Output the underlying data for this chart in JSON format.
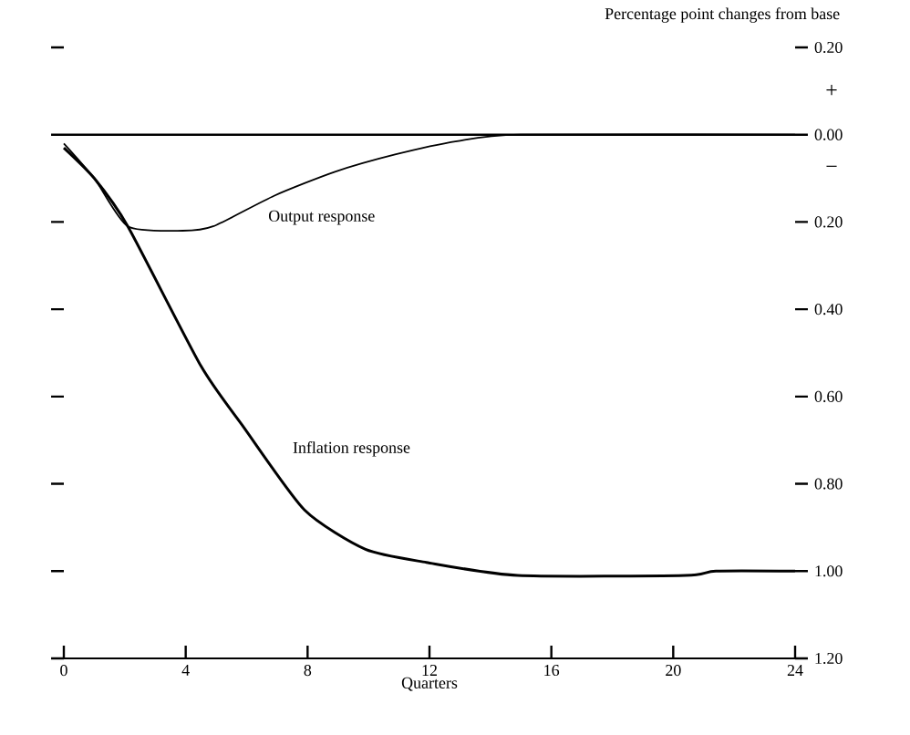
{
  "chart_data": {
    "type": "line",
    "ylabel": "Percentage point changes from base",
    "xlabel": "Quarters",
    "x": [
      0,
      1,
      2.1,
      3.9,
      4.9,
      6.9,
      8.9,
      10.9,
      12.9,
      15,
      24
    ],
    "series": [
      {
        "name": "Output response",
        "color": "#000000",
        "values": [
          -0.02,
          -0.1,
          -0.21,
          -0.22,
          -0.21,
          -0.14,
          -0.085,
          -0.045,
          -0.015,
          0,
          0
        ]
      },
      {
        "name": "Inflation response",
        "color": "#000000",
        "x": [
          0,
          1,
          2.1,
          4.5,
          5.9,
          7.9,
          9.9,
          11.9,
          14.9,
          20.4,
          21.4,
          24
        ],
        "values": [
          -0.03,
          -0.1,
          -0.21,
          -0.53,
          -0.67,
          -0.86,
          -0.95,
          -0.98,
          -1.01,
          -1.01,
          -1.0,
          -1.0
        ]
      }
    ],
    "xlim": [
      0,
      24
    ],
    "xticks": [
      0,
      4,
      8,
      12,
      16,
      20,
      24
    ],
    "ylim": [
      -1.2,
      0.2
    ],
    "yticks": [
      {
        "value": 0.2,
        "label": "0.20"
      },
      {
        "value": 0,
        "label": "0.00"
      },
      {
        "value": -0.2,
        "label": "0.20"
      },
      {
        "value": -0.4,
        "label": "0.40"
      },
      {
        "value": -0.6,
        "label": "0.60"
      },
      {
        "value": -0.8,
        "label": "0.80"
      },
      {
        "value": -1.0,
        "label": "1.00"
      },
      {
        "value": -1.2,
        "label": "1.20"
      }
    ],
    "ref_lines": [
      {
        "axis": "y",
        "value": 0,
        "color": "#000000"
      }
    ],
    "annotations": [
      "+",
      "−"
    ],
    "legend": false,
    "grid": false,
    "marker": "none",
    "line_style": "solid"
  }
}
